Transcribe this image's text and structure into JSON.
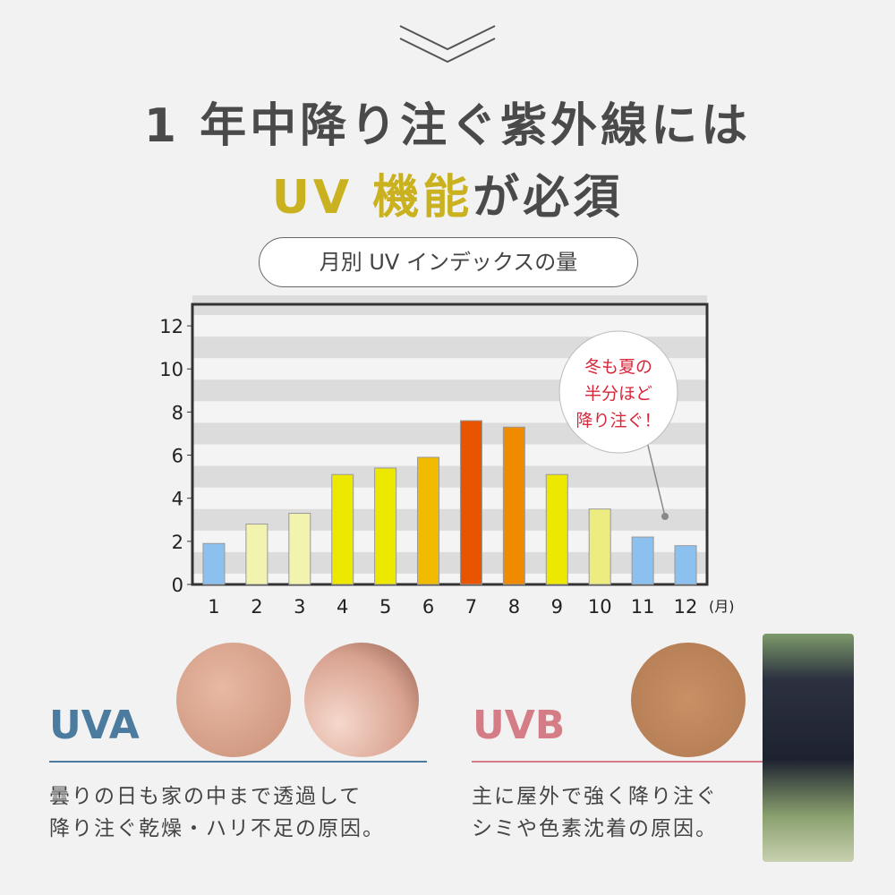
{
  "heading": {
    "line1": "1 年中降り注ぐ紫外線には",
    "line2_accent": "UV 機能",
    "line2_rest": "が必須"
  },
  "pill_label": "月別 UV インデックスの量",
  "chart_data": {
    "type": "bar",
    "categories": [
      "1",
      "2",
      "3",
      "4",
      "5",
      "6",
      "7",
      "8",
      "9",
      "10",
      "11",
      "12"
    ],
    "values": [
      1.9,
      2.8,
      3.3,
      5.1,
      5.4,
      5.9,
      7.6,
      7.3,
      5.1,
      3.5,
      2.2,
      1.8
    ],
    "colors": [
      "#8cc0ee",
      "#f3f3b0",
      "#f3f3b0",
      "#ece800",
      "#ece800",
      "#f0bb00",
      "#e95400",
      "#f08a00",
      "#ece800",
      "#ecec80",
      "#8cc0ee",
      "#8cc0ee"
    ],
    "xunit": "(月)",
    "ylim": [
      0,
      13
    ],
    "yticks": [
      "0",
      "2",
      "4",
      "6",
      "8",
      "10",
      "12"
    ],
    "grid": "alternating bands",
    "annotation": [
      "冬も夏の",
      "半分ほど",
      "降り注ぐ！"
    ]
  },
  "uva": {
    "label": "UVA",
    "color": "#4b7b9f",
    "desc": [
      "曇りの日も家の中まで透過して",
      "降り注ぐ乾燥・ハリ不足の原因。"
    ]
  },
  "uvb": {
    "label": "UVB",
    "color": "#d57d86",
    "desc": [
      "主に屋外で強く降り注ぐ",
      "シミや色素沈着の原因。"
    ]
  }
}
